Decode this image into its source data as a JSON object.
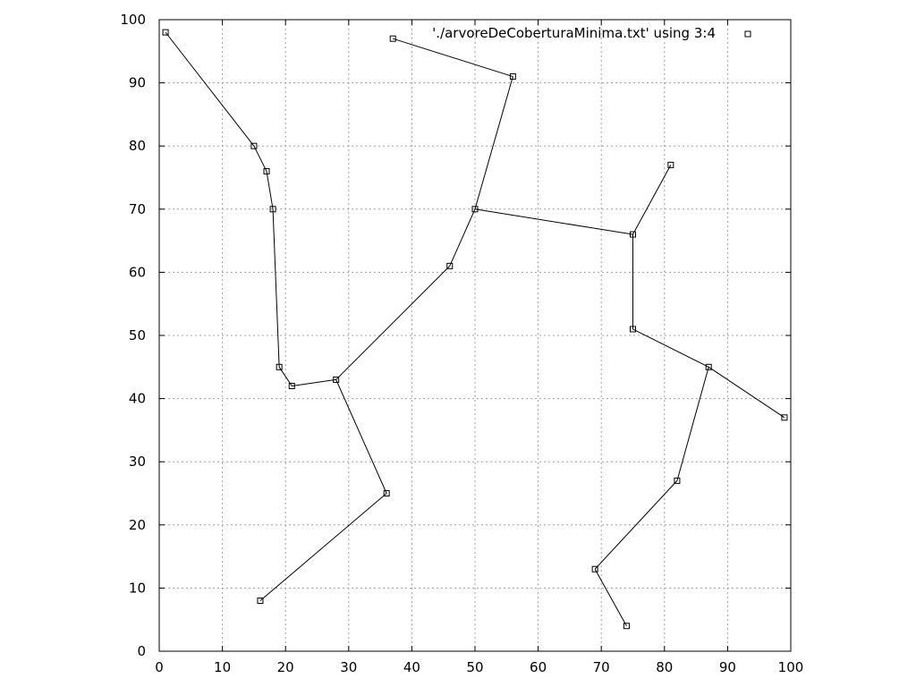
{
  "chart_data": {
    "type": "scatter",
    "xlim": [
      0,
      100
    ],
    "ylim": [
      0,
      100
    ],
    "x_ticks": [
      0,
      10,
      20,
      30,
      40,
      50,
      60,
      70,
      80,
      90,
      100
    ],
    "y_ticks": [
      0,
      10,
      20,
      30,
      40,
      50,
      60,
      70,
      80,
      90,
      100
    ],
    "grid": true,
    "legend": {
      "label": "'./arvoreDeCoberturaMinima.txt' using 3:4",
      "placement": "top-right"
    },
    "points": [
      {
        "x": 1,
        "y": 98
      },
      {
        "x": 15,
        "y": 80
      },
      {
        "x": 17,
        "y": 76
      },
      {
        "x": 18,
        "y": 70
      },
      {
        "x": 19,
        "y": 45
      },
      {
        "x": 21,
        "y": 42
      },
      {
        "x": 28,
        "y": 43
      },
      {
        "x": 36,
        "y": 25
      },
      {
        "x": 16,
        "y": 8
      },
      {
        "x": 46,
        "y": 61
      },
      {
        "x": 50,
        "y": 70
      },
      {
        "x": 56,
        "y": 91
      },
      {
        "x": 37,
        "y": 97
      },
      {
        "x": 75,
        "y": 66
      },
      {
        "x": 81,
        "y": 77
      },
      {
        "x": 75,
        "y": 51
      },
      {
        "x": 87,
        "y": 45
      },
      {
        "x": 99,
        "y": 37
      },
      {
        "x": 82,
        "y": 27
      },
      {
        "x": 69,
        "y": 13
      },
      {
        "x": 74,
        "y": 4
      }
    ],
    "edges": [
      [
        [
          1,
          98
        ],
        [
          15,
          80
        ]
      ],
      [
        [
          15,
          80
        ],
        [
          17,
          76
        ]
      ],
      [
        [
          17,
          76
        ],
        [
          18,
          70
        ]
      ],
      [
        [
          18,
          70
        ],
        [
          19,
          45
        ]
      ],
      [
        [
          19,
          45
        ],
        [
          21,
          42
        ]
      ],
      [
        [
          21,
          42
        ],
        [
          28,
          43
        ]
      ],
      [
        [
          28,
          43
        ],
        [
          36,
          25
        ]
      ],
      [
        [
          36,
          25
        ],
        [
          16,
          8
        ]
      ],
      [
        [
          28,
          43
        ],
        [
          46,
          61
        ]
      ],
      [
        [
          46,
          61
        ],
        [
          50,
          70
        ]
      ],
      [
        [
          50,
          70
        ],
        [
          56,
          91
        ]
      ],
      [
        [
          56,
          91
        ],
        [
          37,
          97
        ]
      ],
      [
        [
          50,
          70
        ],
        [
          75,
          66
        ]
      ],
      [
        [
          75,
          66
        ],
        [
          81,
          77
        ]
      ],
      [
        [
          75,
          66
        ],
        [
          75,
          51
        ]
      ],
      [
        [
          75,
          51
        ],
        [
          87,
          45
        ]
      ],
      [
        [
          87,
          45
        ],
        [
          99,
          37
        ]
      ],
      [
        [
          87,
          45
        ],
        [
          82,
          27
        ]
      ],
      [
        [
          82,
          27
        ],
        [
          69,
          13
        ]
      ],
      [
        [
          69,
          13
        ],
        [
          74,
          4
        ]
      ]
    ]
  }
}
